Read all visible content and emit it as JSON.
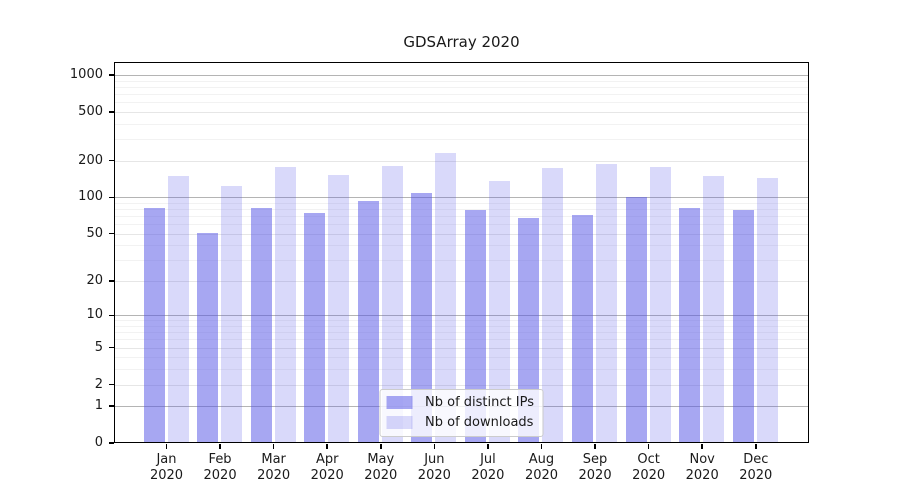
{
  "chart_data": {
    "type": "bar",
    "title": "GDSArray 2020",
    "categories": [
      "Jan",
      "Feb",
      "Mar",
      "Apr",
      "May",
      "Jun",
      "Jul",
      "Aug",
      "Sep",
      "Oct",
      "Nov",
      "Dec"
    ],
    "year_label": "2020",
    "series": [
      {
        "name": "Nb of distinct IPs",
        "color": "rgba(80,80,230,0.50)",
        "values": [
          82,
          51,
          81,
          74,
          94,
          109,
          78,
          67,
          72,
          101,
          81,
          78
        ]
      },
      {
        "name": "Nb of downloads",
        "color": "rgba(80,80,230,0.22)",
        "values": [
          150,
          124,
          178,
          153,
          181,
          231,
          135,
          173,
          188,
          176,
          150,
          145
        ]
      }
    ],
    "xlabel": "",
    "ylabel": "",
    "yscale": "log1p",
    "ylim": [
      0,
      1282
    ],
    "yticks": [
      0,
      1,
      2,
      5,
      10,
      20,
      50,
      100,
      200,
      500,
      1000
    ],
    "ytick_labels": [
      "0",
      "1",
      "2",
      "5",
      "10",
      "20",
      "50",
      "100",
      "200",
      "500",
      "1000"
    ],
    "yticks_emphasized": [
      1,
      10,
      100,
      1000
    ],
    "yticks_minor": [
      3,
      4,
      6,
      7,
      8,
      9,
      30,
      40,
      60,
      70,
      80,
      90,
      300,
      400,
      600,
      700,
      800,
      900
    ],
    "grid": true,
    "legend_position": "lower center",
    "colors": {
      "grid_emphasized": "#b4b4b4",
      "grid_major": "#e6e6e6",
      "grid_minor": "#f2f2f2",
      "axis": "#000000",
      "text": "#1a1a1a",
      "legend_border": "#cccccc",
      "legend_bg": "rgba(255,255,255,0.8)"
    }
  }
}
